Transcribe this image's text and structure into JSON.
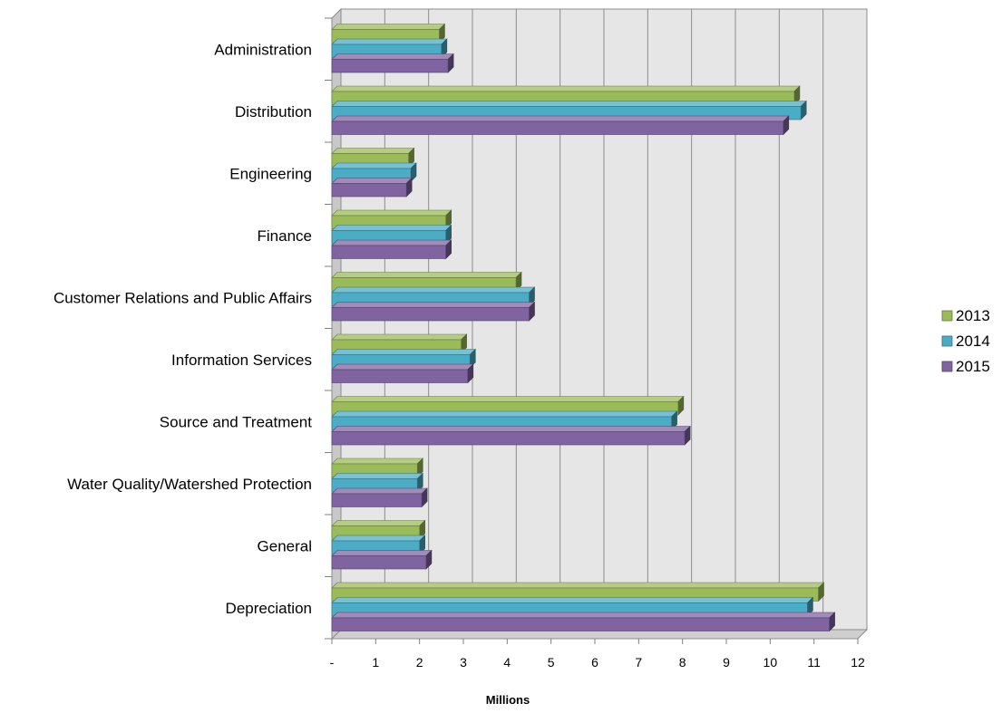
{
  "chart_data": {
    "type": "bar",
    "orientation": "horizontal",
    "three_d": true,
    "categories": [
      "Administration",
      "Distribution",
      "Engineering",
      "Finance",
      "Customer Relations and Public Affairs",
      "Information Services",
      "Source and Treatment",
      "Water Quality/Watershed Protection",
      "General",
      "Depreciation"
    ],
    "series": [
      {
        "name": "2013",
        "color": "#9BBB59",
        "values": [
          2.45,
          10.55,
          1.75,
          2.6,
          4.2,
          2.95,
          7.9,
          1.95,
          2.0,
          11.1
        ]
      },
      {
        "name": "2014",
        "color": "#4BACC6",
        "values": [
          2.5,
          10.7,
          1.8,
          2.6,
          4.5,
          3.15,
          7.75,
          1.95,
          2.0,
          10.85
        ]
      },
      {
        "name": "2015",
        "color": "#8064A2",
        "values": [
          2.65,
          10.3,
          1.7,
          2.6,
          4.5,
          3.1,
          8.05,
          2.05,
          2.15,
          11.35
        ]
      }
    ],
    "xlabel": "Millions",
    "ylabel": "",
    "xlim": [
      0,
      12
    ],
    "x_ticks": [
      "-",
      "1",
      "2",
      "3",
      "4",
      "5",
      "6",
      "7",
      "8",
      "9",
      "10",
      "11",
      "12"
    ],
    "grid": true,
    "legend_position": "right"
  }
}
